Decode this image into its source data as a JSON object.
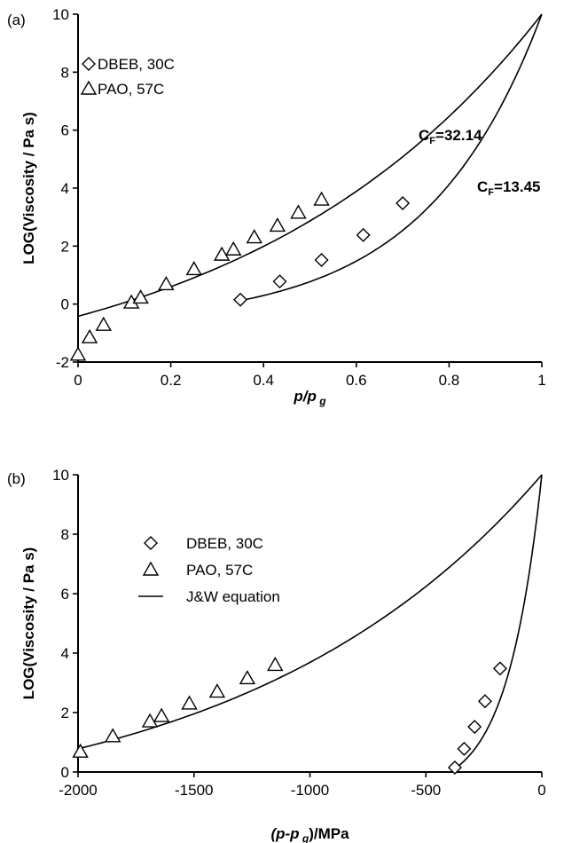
{
  "chart_data": [
    {
      "panel_label": "(a)",
      "type": "scatter",
      "xlabel": "p/p",
      "xlabel_sub": "g",
      "ylabel": "LOG(Viscosity / Pa s)",
      "xlim": [
        0,
        1
      ],
      "ylim": [
        -2,
        10
      ],
      "xticks": [
        0,
        0.2,
        0.4,
        0.6,
        0.8,
        1
      ],
      "xtick_labels": [
        "0",
        "0.2",
        "0.4",
        "0.6",
        "0.8",
        "1"
      ],
      "yticks": [
        -2,
        0,
        2,
        4,
        6,
        8,
        10
      ],
      "ytick_labels": [
        "-2",
        "0",
        "2",
        "4",
        "6",
        "8",
        "10"
      ],
      "grid": false,
      "legend_position": "top-left",
      "series": [
        {
          "name": "DBEB, 30C",
          "marker": "diamond",
          "x": [
            0.35,
            0.435,
            0.525,
            0.615,
            0.7
          ],
          "y": [
            0.15,
            0.78,
            1.52,
            2.38,
            3.48
          ]
        },
        {
          "name": "PAO, 57C",
          "marker": "triangle",
          "x": [
            0.0,
            0.025,
            0.055,
            0.115,
            0.135,
            0.19,
            0.25,
            0.31,
            0.335,
            0.38,
            0.43,
            0.475,
            0.525
          ],
          "y": [
            -1.75,
            -1.15,
            -0.72,
            0.05,
            0.22,
            0.68,
            1.2,
            1.7,
            1.88,
            2.3,
            2.7,
            3.15,
            3.6
          ]
        }
      ],
      "curves": [
        {
          "label": "C",
          "label_sub": "F",
          "label_value": "=32.14",
          "x0": 0,
          "y0": -0.42,
          "x1": 1,
          "y1": 10,
          "curvature": 1.55
        },
        {
          "label": "C",
          "label_sub": "F",
          "label_value": "=13.45",
          "x0": 0.35,
          "y0": 0.12,
          "x1": 1,
          "y1": 10,
          "curvature": 2.6
        }
      ]
    },
    {
      "panel_label": "(b)",
      "type": "scatter",
      "xlabel": "(p-p",
      "xlabel_sub": "g",
      "xlabel_tail": ")/MPa",
      "ylabel": "LOG(Viscosity / Pa s)",
      "xlim": [
        -2000,
        0
      ],
      "ylim": [
        0,
        10
      ],
      "xticks": [
        -2000,
        -1500,
        -1000,
        -500,
        0
      ],
      "xtick_labels": [
        "-2000",
        "-1500",
        "-1000",
        "-500",
        "0"
      ],
      "yticks": [
        0,
        2,
        4,
        6,
        8,
        10
      ],
      "ytick_labels": [
        "0",
        "2",
        "4",
        "6",
        "8",
        "10"
      ],
      "grid": false,
      "legend_position": "top-left",
      "series": [
        {
          "name": "DBEB, 30C",
          "marker": "diamond",
          "x": [
            -375,
            -335,
            -290,
            -245,
            -180
          ],
          "y": [
            0.15,
            0.78,
            1.52,
            2.38,
            3.48
          ]
        },
        {
          "name": "PAO, 57C",
          "marker": "triangle",
          "x": [
            -1990,
            -1850,
            -1690,
            -1640,
            -1520,
            -1400,
            -1270,
            -1150
          ],
          "y": [
            0.68,
            1.2,
            1.7,
            1.88,
            2.3,
            2.7,
            3.15,
            3.6
          ]
        },
        {
          "name": "J&W equation",
          "marker": "line"
        }
      ],
      "curves": [
        {
          "x0": -2000,
          "y0": 0.78,
          "x1": 0,
          "y1": 10,
          "curvature": 1.55
        },
        {
          "x0": -385,
          "y0": 0.05,
          "x1": 0,
          "y1": 10,
          "curvature": 2.6
        }
      ]
    }
  ]
}
